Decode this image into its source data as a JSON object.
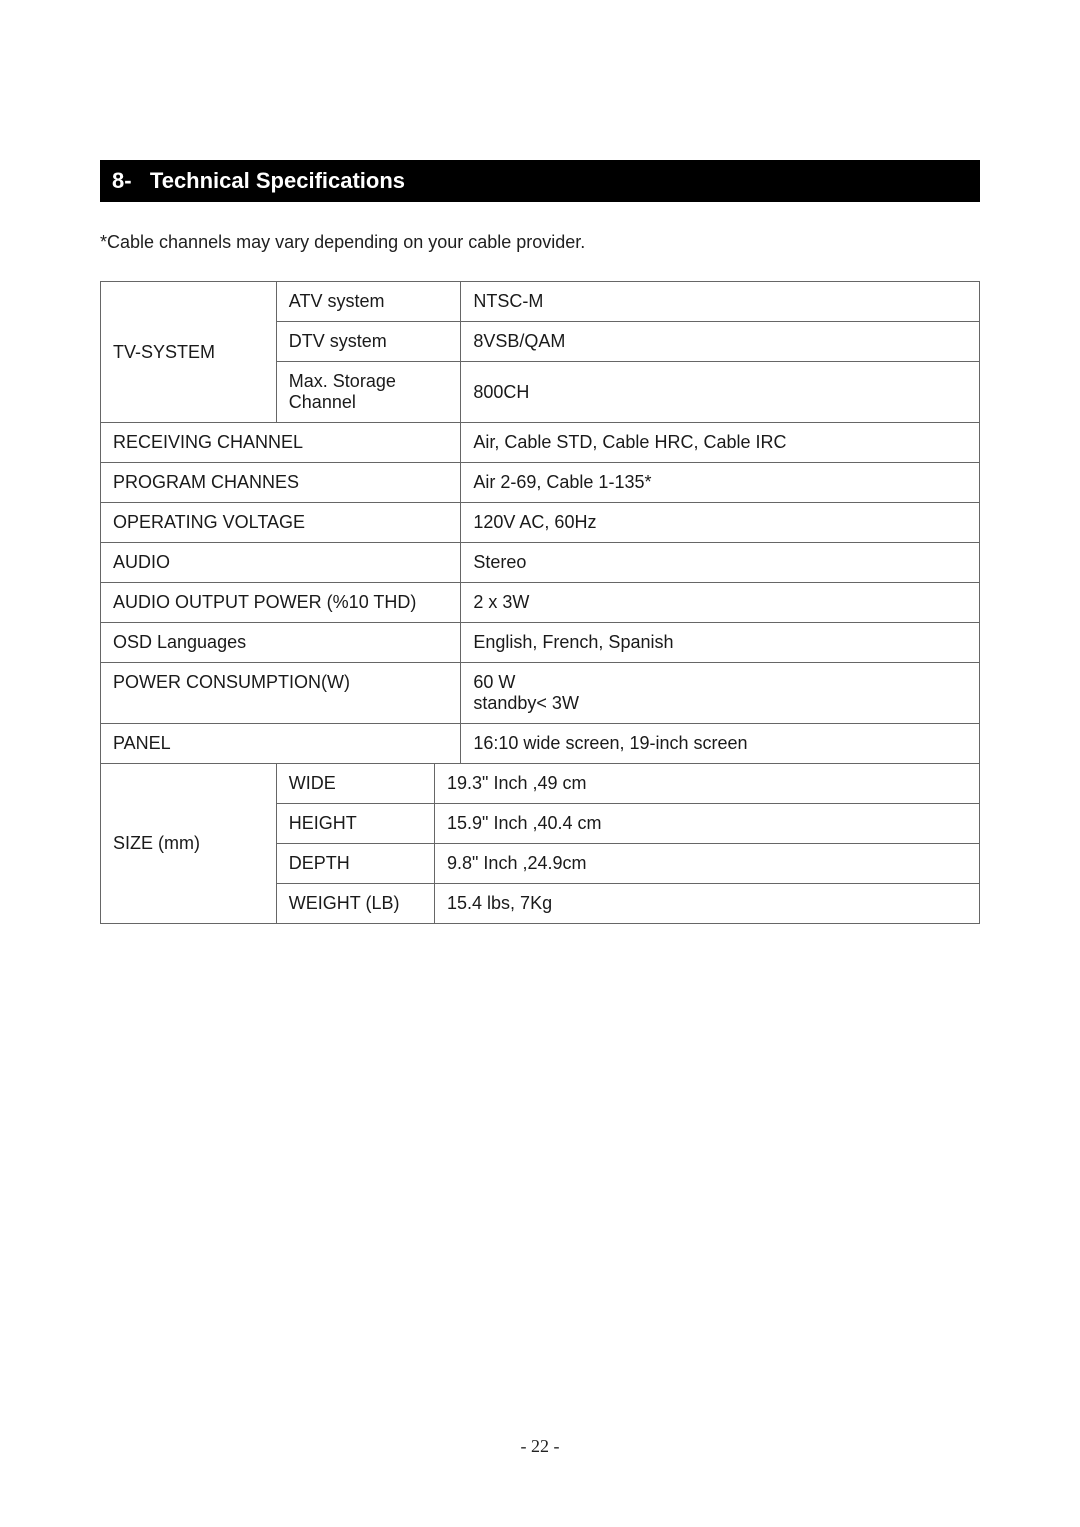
{
  "header": {
    "number": "8-",
    "title": "Technical Specifications"
  },
  "note": "*Cable channels may vary depending on your cable provider.",
  "tv_system": {
    "label": "TV-SYSTEM",
    "rows": [
      {
        "label": "ATV system",
        "value": "NTSC-M"
      },
      {
        "label": "DTV system",
        "value": "8VSB/QAM"
      },
      {
        "label": "Max. Storage Channel",
        "value": "800CH"
      }
    ]
  },
  "rows": [
    {
      "label": "RECEIVING CHANNEL",
      "value": "Air, Cable STD, Cable HRC, Cable IRC"
    },
    {
      "label": "PROGRAM CHANNES",
      "value": "Air 2-69, Cable 1-135*"
    },
    {
      "label": "OPERATING VOLTAGE",
      "value": "120V AC, 60Hz"
    },
    {
      "label": "AUDIO",
      "value": "Stereo"
    },
    {
      "label": "AUDIO OUTPUT POWER (%10 THD)",
      "value": "2 x 3W"
    },
    {
      "label": "OSD Languages",
      "value": "English, French, Spanish"
    },
    {
      "label": "POWER CONSUMPTION(W)",
      "value": "60 W\nstandby< 3W"
    },
    {
      "label": "PANEL",
      "value": "16:10 wide screen, 19-inch screen"
    }
  ],
  "size": {
    "label": "SIZE (mm)",
    "rows": [
      {
        "label": "WIDE",
        "value": "19.3\" Inch ,49 cm"
      },
      {
        "label": "HEIGHT",
        "value": "15.9\" Inch ,40.4 cm"
      },
      {
        "label": "DEPTH",
        "value": "9.8\" Inch ,24.9cm"
      },
      {
        "label": "WEIGHT (LB)",
        "value": "15.4 lbs,   7Kg"
      }
    ]
  },
  "page_number": "- 22 -",
  "colors": {
    "header_bg": "#000000",
    "header_fg": "#ffffff",
    "text": "#1a1a1a",
    "border": "#666666",
    "page_bg": "#ffffff"
  },
  "fonts": {
    "body_family": "Arial",
    "body_size_pt": 13,
    "header_size_pt": 16,
    "header_weight": "bold",
    "pagenum_family": "Times New Roman"
  }
}
